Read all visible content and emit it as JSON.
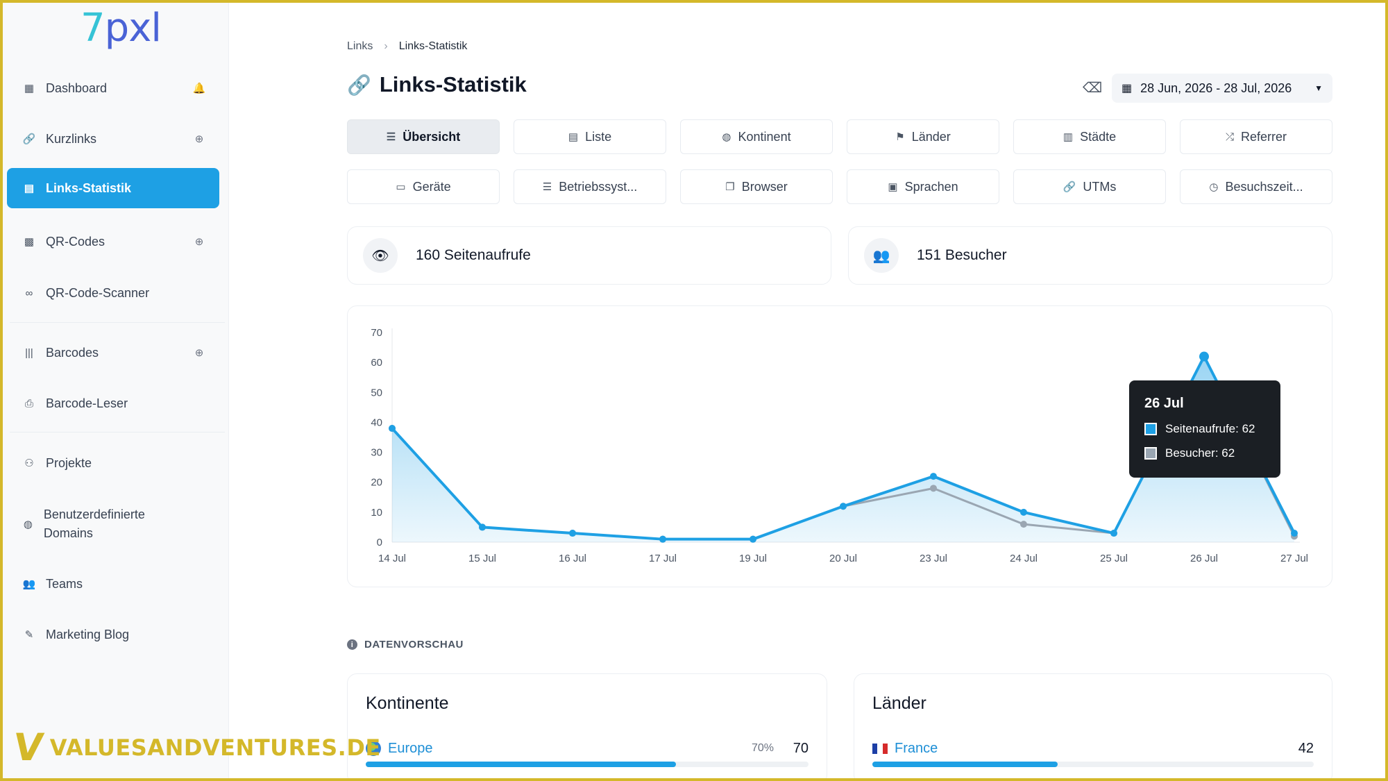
{
  "logo": {
    "part1": "7",
    "part2": "pxl"
  },
  "sidebar": {
    "items": [
      {
        "label": "Dashboard",
        "icon": "table-icon",
        "action_icon": "bell-icon"
      },
      {
        "label": "Kurzlinks",
        "icon": "link-icon",
        "action_icon": "plus-circle-icon"
      },
      {
        "label": "Links-Statistik",
        "icon": "chart-icon",
        "active": true
      },
      {
        "label": "QR-Codes",
        "icon": "qrcode-icon",
        "action_icon": "plus-circle-icon"
      },
      {
        "label": "QR-Code-Scanner",
        "icon": "glasses-icon"
      },
      {
        "label": "Barcodes",
        "icon": "barcode-icon",
        "action_icon": "plus-circle-icon"
      },
      {
        "label": "Barcode-Leser",
        "icon": "printer-icon"
      },
      {
        "label": "Projekte",
        "icon": "project-icon"
      },
      {
        "label": "Benutzerdefinierte Domains",
        "icon": "globe-icon"
      },
      {
        "label": "Teams",
        "icon": "team-icon"
      },
      {
        "label": "Marketing Blog",
        "icon": "blog-icon"
      }
    ]
  },
  "watermark": {
    "text": "VALUESANDVENTURES.DE"
  },
  "breadcrumb": {
    "root": "Links",
    "current": "Links-Statistik"
  },
  "page_title": "Links-Statistik",
  "date_range": "28 Jun, 2026 - 28 Jul, 2026",
  "tabs": [
    {
      "label": "Übersicht",
      "icon": "list-icon",
      "active": true
    },
    {
      "label": "Liste",
      "icon": "chart-icon"
    },
    {
      "label": "Kontinent",
      "icon": "globe-icon"
    },
    {
      "label": "Länder",
      "icon": "flag-icon"
    },
    {
      "label": "Städte",
      "icon": "city-icon"
    },
    {
      "label": "Referrer",
      "icon": "shuffle-icon"
    },
    {
      "label": "Geräte",
      "icon": "laptop-icon"
    },
    {
      "label": "Betriebssyst...",
      "icon": "server-icon"
    },
    {
      "label": "Browser",
      "icon": "window-icon"
    },
    {
      "label": "Sprachen",
      "icon": "language-icon"
    },
    {
      "label": "UTMs",
      "icon": "link-icon"
    },
    {
      "label": "Besuchszeit...",
      "icon": "clock-icon"
    }
  ],
  "stats": {
    "pageviews": "160 Seitenaufrufe",
    "visitors": "151 Besucher"
  },
  "chart_data": {
    "type": "area",
    "categories": [
      "14 Jul",
      "15 Jul",
      "16 Jul",
      "17 Jul",
      "19 Jul",
      "20 Jul",
      "23 Jul",
      "24 Jul",
      "25 Jul",
      "26 Jul",
      "27 Jul"
    ],
    "series": [
      {
        "name": "Seitenaufrufe",
        "values": [
          38,
          5,
          3,
          1,
          1,
          12,
          22,
          10,
          3,
          62,
          3
        ],
        "color": "#1ea0e4"
      },
      {
        "name": "Besucher",
        "values": [
          38,
          5,
          3,
          1,
          1,
          12,
          18,
          6,
          3,
          62,
          2
        ],
        "color": "#9aa6b2"
      }
    ],
    "ylim": [
      0,
      70
    ],
    "yticks": [
      0,
      10,
      20,
      30,
      40,
      50,
      60,
      70
    ],
    "grid": false,
    "tooltip": {
      "title": "26 Jul",
      "lines": [
        "Seitenaufrufe: 62",
        "Besucher: 62"
      ]
    }
  },
  "preview": {
    "section_title": "DATENVORSCHAU",
    "continents": {
      "title": "Kontinente",
      "name": "Europe",
      "pct": "70%",
      "pct_value": 70,
      "count": "70"
    },
    "countries": {
      "title": "Länder",
      "name": "France",
      "count": "42",
      "pct_value": 42
    }
  }
}
